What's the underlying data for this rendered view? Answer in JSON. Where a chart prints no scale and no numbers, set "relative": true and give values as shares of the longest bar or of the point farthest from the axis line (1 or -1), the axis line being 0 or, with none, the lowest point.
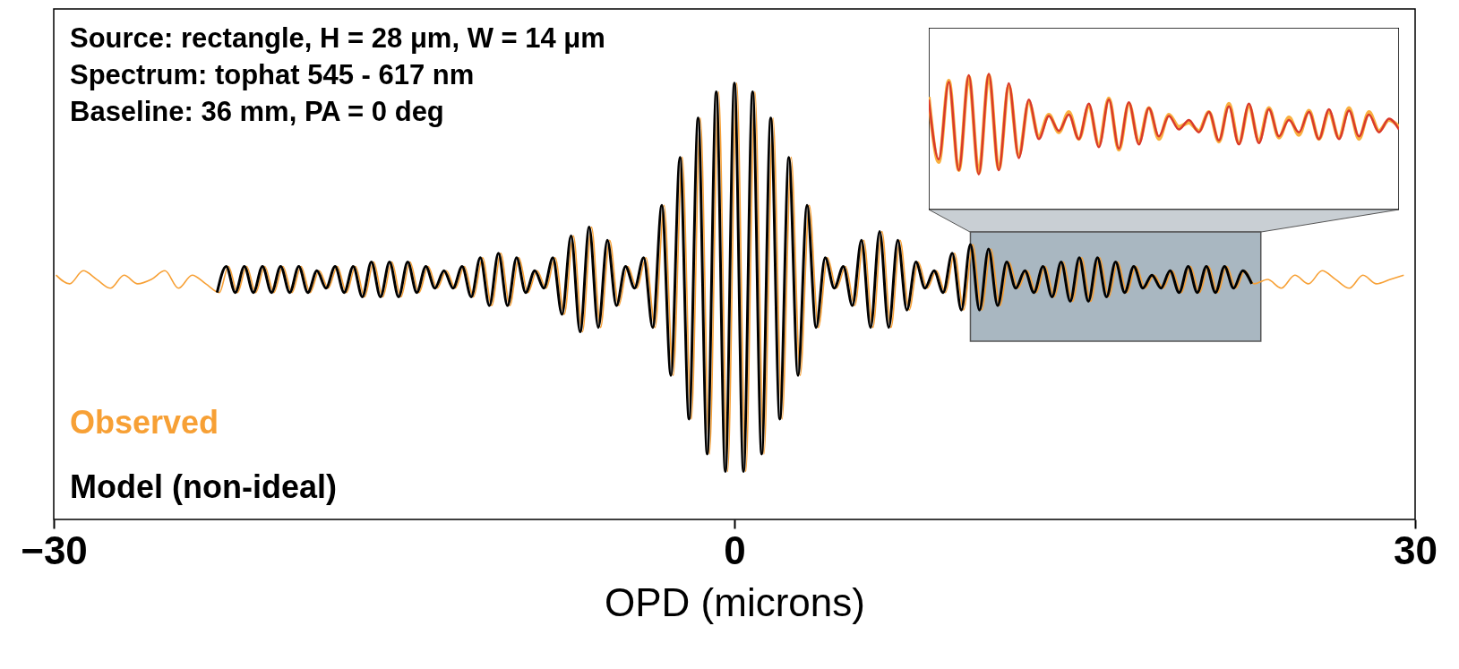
{
  "chart_data": [
    {
      "type": "line",
      "relative": true,
      "xlabel": "OPD (microns)",
      "xlim": [
        -30,
        30
      ],
      "xticks": [
        -30,
        0,
        30
      ],
      "legend": "bottom left",
      "bands": [
        {
          "axis": "x",
          "from": 10.4,
          "to": 23.2,
          "color": "#a9b7c1"
        }
      ],
      "annotations": [
        "Source:  rectangle, H = 28 μm, W = 14 μm",
        "Spectrum: tophat 545 - 617 nm",
        "Baseline: 36 mm, PA = 0 deg"
      ],
      "series": [
        {
          "name": "Observed",
          "color": "#f7a035",
          "x": [
            -29.9,
            -29.3,
            -28.7,
            -28.1,
            -27.5,
            -26.9,
            -26.3,
            -25.7,
            -25.1,
            -24.5,
            -23.9,
            -23.3,
            -22.7,
            -22.3,
            -21.9,
            -21.5,
            -21.1,
            -20.7,
            -20.3,
            -19.9,
            -19.5,
            -19.1,
            -18.7,
            -18.3,
            -17.9,
            -17.5,
            -17.1,
            -16.7,
            -16.3,
            -15.9,
            -15.5,
            -15.1,
            -14.7,
            -14.3,
            -13.9,
            -13.5,
            -13.1,
            -12.7,
            -12.3,
            -11.9,
            -11.5,
            -11.1,
            -10.7,
            -10.3,
            -9.9,
            -9.5,
            -9.1,
            -8.7,
            -8.3,
            -7.9,
            -7.5,
            -7.1,
            -6.7,
            -6.3,
            -5.9,
            -5.5,
            -5.1,
            -4.7,
            -4.3,
            -3.9,
            -3.5,
            -3.1,
            -2.7,
            -2.3,
            -1.9,
            -1.5,
            -1.1,
            -0.7,
            -0.3,
            0.1,
            0.5,
            0.9,
            1.3,
            1.7,
            2.1,
            2.5,
            2.9,
            3.3,
            3.7,
            4.1,
            4.5,
            4.9,
            5.3,
            5.7,
            6.1,
            6.5,
            6.9,
            7.3,
            7.7,
            8.1,
            8.5,
            8.9,
            9.3,
            9.7,
            10.1,
            10.5,
            10.9,
            11.3,
            11.7,
            12.1,
            12.5,
            12.9,
            13.3,
            13.7,
            14.1,
            14.5,
            14.9,
            15.3,
            15.7,
            16.1,
            16.5,
            16.9,
            17.3,
            17.7,
            18.1,
            18.5,
            18.9,
            19.3,
            19.7,
            20.1,
            20.5,
            20.9,
            21.3,
            21.7,
            22.1,
            22.5,
            22.9,
            23.5,
            24.1,
            24.7,
            25.3,
            25.9,
            26.5,
            27.1,
            27.7,
            28.3,
            28.9,
            29.5
          ],
          "values": [
            0.56,
            0.54,
            0.57,
            0.55,
            0.53,
            0.56,
            0.54,
            0.55,
            0.57,
            0.53,
            0.56,
            0.54,
            0.52,
            0.58,
            0.52,
            0.58,
            0.52,
            0.58,
            0.52,
            0.58,
            0.52,
            0.58,
            0.52,
            0.57,
            0.53,
            0.58,
            0.52,
            0.58,
            0.51,
            0.59,
            0.51,
            0.59,
            0.51,
            0.59,
            0.52,
            0.58,
            0.53,
            0.57,
            0.53,
            0.58,
            0.51,
            0.6,
            0.49,
            0.61,
            0.49,
            0.6,
            0.52,
            0.57,
            0.53,
            0.6,
            0.47,
            0.65,
            0.43,
            0.67,
            0.44,
            0.64,
            0.49,
            0.58,
            0.53,
            0.6,
            0.44,
            0.72,
            0.33,
            0.83,
            0.23,
            0.92,
            0.15,
            0.98,
            0.11,
            1.0,
            0.11,
            0.98,
            0.15,
            0.92,
            0.23,
            0.83,
            0.33,
            0.72,
            0.44,
            0.6,
            0.53,
            0.58,
            0.49,
            0.64,
            0.44,
            0.66,
            0.44,
            0.64,
            0.48,
            0.59,
            0.53,
            0.57,
            0.52,
            0.61,
            0.48,
            0.63,
            0.48,
            0.62,
            0.49,
            0.59,
            0.53,
            0.57,
            0.52,
            0.58,
            0.51,
            0.59,
            0.5,
            0.6,
            0.5,
            0.6,
            0.51,
            0.59,
            0.52,
            0.58,
            0.53,
            0.56,
            0.53,
            0.57,
            0.52,
            0.58,
            0.52,
            0.58,
            0.52,
            0.58,
            0.53,
            0.57,
            0.54,
            0.55,
            0.53,
            0.56,
            0.54,
            0.57,
            0.55,
            0.53,
            0.56,
            0.54,
            0.55,
            0.56
          ]
        },
        {
          "name": "Model (non-ideal)",
          "color": "#000000",
          "x": [
            -22.8,
            -22.4,
            -22,
            -21.6,
            -21.2,
            -20.8,
            -20.4,
            -20,
            -19.6,
            -19.2,
            -18.8,
            -18.4,
            -18,
            -17.6,
            -17.2,
            -16.8,
            -16.4,
            -16,
            -15.6,
            -15.2,
            -14.8,
            -14.4,
            -14,
            -13.6,
            -13.2,
            -12.8,
            -12.4,
            -12,
            -11.6,
            -11.2,
            -10.8,
            -10.4,
            -10,
            -9.6,
            -9.2,
            -8.8,
            -8.4,
            -8,
            -7.6,
            -7.2,
            -6.8,
            -6.4,
            -6,
            -5.6,
            -5.2,
            -4.8,
            -4.4,
            -4,
            -3.6,
            -3.2,
            -2.8,
            -2.4,
            -2,
            -1.6,
            -1.2,
            -0.8,
            -0.4,
            0,
            0.4,
            0.8,
            1.2,
            1.6,
            2,
            2.4,
            2.8,
            3.2,
            3.6,
            4,
            4.4,
            4.8,
            5.2,
            5.6,
            6,
            6.4,
            6.8,
            7.2,
            7.6,
            8,
            8.4,
            8.8,
            9.2,
            9.6,
            10,
            10.4,
            10.8,
            11.2,
            11.6,
            12,
            12.4,
            12.8,
            13.2,
            13.6,
            14,
            14.4,
            14.8,
            15.2,
            15.6,
            16,
            16.4,
            16.8,
            17.2,
            17.6,
            18,
            18.4,
            18.8,
            19.2,
            19.6,
            20,
            20.4,
            20.8,
            21.2,
            21.6,
            22,
            22.4,
            22.8
          ],
          "values": [
            0.52,
            0.58,
            0.52,
            0.58,
            0.52,
            0.58,
            0.52,
            0.58,
            0.52,
            0.58,
            0.52,
            0.57,
            0.53,
            0.58,
            0.52,
            0.58,
            0.51,
            0.59,
            0.51,
            0.59,
            0.51,
            0.59,
            0.52,
            0.58,
            0.53,
            0.57,
            0.53,
            0.58,
            0.51,
            0.6,
            0.49,
            0.61,
            0.49,
            0.6,
            0.52,
            0.57,
            0.53,
            0.6,
            0.47,
            0.65,
            0.43,
            0.67,
            0.44,
            0.64,
            0.49,
            0.58,
            0.53,
            0.6,
            0.44,
            0.72,
            0.33,
            0.83,
            0.23,
            0.92,
            0.15,
            0.98,
            0.11,
            1.0,
            0.11,
            0.98,
            0.15,
            0.92,
            0.23,
            0.83,
            0.33,
            0.72,
            0.44,
            0.6,
            0.53,
            0.58,
            0.49,
            0.64,
            0.44,
            0.66,
            0.44,
            0.64,
            0.48,
            0.59,
            0.53,
            0.57,
            0.52,
            0.61,
            0.48,
            0.63,
            0.48,
            0.62,
            0.49,
            0.59,
            0.53,
            0.57,
            0.52,
            0.58,
            0.51,
            0.59,
            0.5,
            0.6,
            0.5,
            0.6,
            0.51,
            0.59,
            0.52,
            0.58,
            0.53,
            0.56,
            0.53,
            0.57,
            0.52,
            0.58,
            0.52,
            0.58,
            0.52,
            0.58,
            0.53,
            0.57,
            0.54
          ]
        }
      ]
    },
    {
      "type": "line",
      "relative": true,
      "categories": [
        null,
        null,
        null,
        null,
        null,
        null,
        null,
        null,
        null,
        null,
        null,
        null,
        null,
        null,
        null,
        null,
        null,
        null,
        null,
        null,
        null,
        null,
        null,
        null,
        null,
        null,
        null,
        null,
        null,
        null,
        null,
        null,
        null,
        null,
        null,
        null,
        null,
        null,
        null,
        null,
        null,
        null,
        null,
        null,
        null,
        null,
        null,
        null
      ],
      "series": [
        {
          "color": "#f9b040",
          "values": [
            0.83,
            0.35,
            0.95,
            0.29,
            0.98,
            0.27,
            0.99,
            0.3,
            0.91,
            0.4,
            0.79,
            0.54,
            0.7,
            0.57,
            0.72,
            0.52,
            0.76,
            0.48,
            0.82,
            0.44,
            0.78,
            0.5,
            0.75,
            0.52,
            0.7,
            0.61,
            0.64,
            0.58,
            0.72,
            0.5,
            0.78,
            0.49,
            0.76,
            0.51,
            0.75,
            0.53,
            0.68,
            0.55,
            0.73,
            0.52,
            0.72,
            0.53,
            0.75,
            0.52,
            0.72,
            0.58,
            0.66,
            0.61
          ]
        },
        {
          "color": "#d93a2b",
          "values": [
            0.81,
            0.37,
            0.94,
            0.29,
            0.99,
            0.26,
            1.0,
            0.29,
            0.93,
            0.38,
            0.81,
            0.52,
            0.69,
            0.58,
            0.7,
            0.52,
            0.78,
            0.46,
            0.81,
            0.45,
            0.79,
            0.48,
            0.75,
            0.54,
            0.69,
            0.59,
            0.66,
            0.57,
            0.72,
            0.51,
            0.76,
            0.48,
            0.78,
            0.49,
            0.74,
            0.54,
            0.66,
            0.57,
            0.72,
            0.52,
            0.74,
            0.52,
            0.73,
            0.54,
            0.7,
            0.57,
            0.67,
            0.59
          ]
        }
      ]
    }
  ]
}
